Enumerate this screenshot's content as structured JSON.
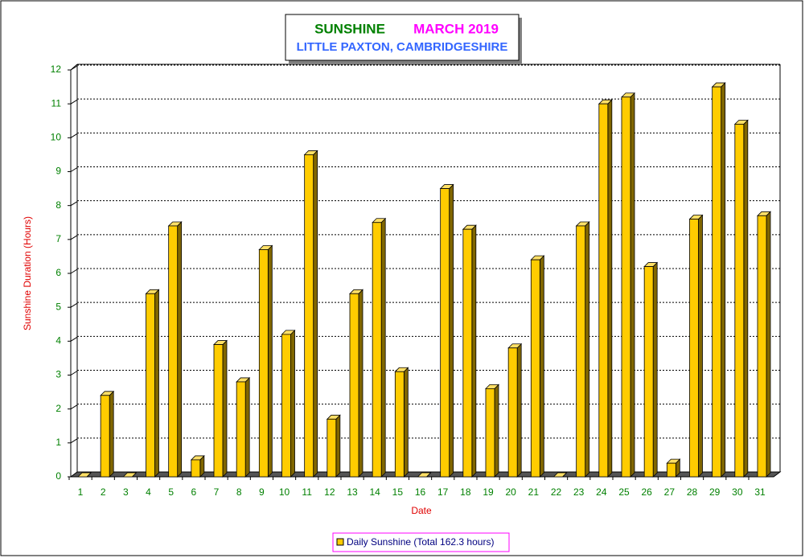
{
  "chart_data": {
    "type": "bar3d",
    "title": "SUNSHINE",
    "period": "MARCH 2019",
    "subtitle": "LITTLE PAXTON, CAMBRIDGESHIRE",
    "x_label": "Date",
    "y_label": "Sunshine Duration (Hours)",
    "categories": [
      "1",
      "2",
      "3",
      "4",
      "5",
      "6",
      "7",
      "8",
      "9",
      "10",
      "11",
      "12",
      "13",
      "14",
      "15",
      "16",
      "17",
      "18",
      "19",
      "20",
      "21",
      "22",
      "23",
      "24",
      "25",
      "26",
      "27",
      "28",
      "29",
      "30",
      "31"
    ],
    "series": [
      {
        "name": "Daily Sunshine (Total 162.3 hours)",
        "color": "#ffcc00",
        "values": [
          0,
          2.4,
          0,
          5.4,
          7.4,
          0.5,
          3.9,
          2.8,
          6.7,
          4.2,
          9.5,
          1.7,
          5.4,
          7.5,
          3.1,
          0,
          8.5,
          7.3,
          2.6,
          3.8,
          6.4,
          0,
          7.4,
          11.0,
          11.2,
          6.2,
          0.4,
          7.6,
          11.5,
          10.4,
          7.7
        ]
      }
    ],
    "ylim": [
      0,
      12
    ],
    "yticks": [
      0,
      1,
      2,
      3,
      4,
      5,
      6,
      7,
      8,
      9,
      10,
      11,
      12
    ],
    "grid": true
  }
}
